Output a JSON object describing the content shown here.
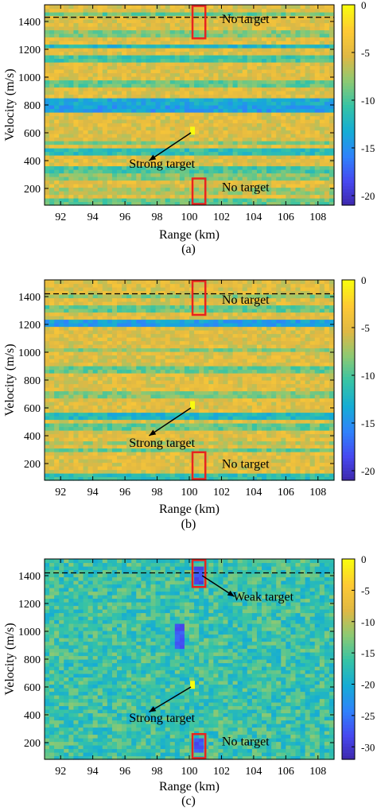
{
  "colors": {
    "marker_box": "#e8231f",
    "dashed_line": "#000000",
    "arrow": "#000000",
    "colormap": [
      "#3d26a8",
      "#4748f0",
      "#2f82fb",
      "#15acd5",
      "#35c3a6",
      "#8cc973",
      "#dfb844",
      "#fec934",
      "#f9fb0e"
    ]
  },
  "chart_data": [
    {
      "type": "heatmap",
      "caption": "(a)",
      "xlabel": "Range (km)",
      "ylabel": "Velocity (m/s)",
      "xlim": [
        91,
        109
      ],
      "ylim": [
        80,
        1520
      ],
      "xticks": [
        92,
        94,
        96,
        98,
        100,
        102,
        104,
        106,
        108
      ],
      "yticks": [
        200,
        400,
        600,
        800,
        1000,
        1200,
        1400
      ],
      "colorbar": {
        "ticks": [
          0,
          -5,
          -10,
          -15,
          -20
        ],
        "labels": [
          "0",
          "-5",
          "-10",
          "-15",
          "-20"
        ],
        "lim": [
          -21,
          0
        ]
      },
      "background_level": -5,
      "weak_rows": [
        {
          "velocity": 110,
          "level": -9
        },
        {
          "velocity": 180,
          "level": -7
        },
        {
          "velocity": 290,
          "level": -8
        },
        {
          "velocity": 340,
          "level": -10
        },
        {
          "velocity": 470,
          "level": -11
        },
        {
          "velocity": 530,
          "level": -8
        },
        {
          "velocity": 780,
          "level": -14
        },
        {
          "velocity": 820,
          "level": -13
        },
        {
          "velocity": 960,
          "level": -9
        },
        {
          "velocity": 1140,
          "level": -10
        },
        {
          "velocity": 1230,
          "level": -12
        },
        {
          "velocity": 1320,
          "level": -8
        },
        {
          "velocity": 1450,
          "level": -9
        }
      ],
      "strong_target": {
        "range": 100.2,
        "velocity": 615
      },
      "dashed_line_velocity": 1430,
      "boxes": [
        {
          "x0": 100.2,
          "x1": 101.0,
          "y0": 1270,
          "y1": 1520
        },
        {
          "x0": 100.2,
          "x1": 101.0,
          "y0": 80,
          "y1": 280
        }
      ],
      "annotations": [
        {
          "text": "Strong target",
          "text_pos": [
            98.3,
            350
          ],
          "arrow_from": [
            97.5,
            400
          ],
          "arrow_to": [
            100.1,
            600
          ]
        },
        {
          "text": "No target",
          "text_pos": [
            103.5,
            1390
          ]
        },
        {
          "text": "No target",
          "text_pos": [
            103.5,
            180
          ]
        }
      ]
    },
    {
      "type": "heatmap",
      "caption": "(b)",
      "xlabel": "Range (km)",
      "ylabel": "Velocity (m/s)",
      "xlim": [
        91,
        109
      ],
      "ylim": [
        80,
        1520
      ],
      "xticks": [
        92,
        94,
        96,
        98,
        100,
        102,
        104,
        106,
        108
      ],
      "yticks": [
        200,
        400,
        600,
        800,
        1000,
        1200,
        1400
      ],
      "colorbar": {
        "ticks": [
          0,
          -5,
          -10,
          -15,
          -20
        ],
        "labels": [
          "0",
          "-5",
          "-10",
          "-15",
          "-20"
        ],
        "lim": [
          -21,
          0
        ]
      },
      "background_level": -5,
      "weak_rows": [
        {
          "velocity": 110,
          "level": -11
        },
        {
          "velocity": 300,
          "level": -9
        },
        {
          "velocity": 350,
          "level": -7
        },
        {
          "velocity": 460,
          "level": -9
        },
        {
          "velocity": 540,
          "level": -12
        },
        {
          "velocity": 700,
          "level": -8
        },
        {
          "velocity": 880,
          "level": -9
        },
        {
          "velocity": 1020,
          "level": -8
        },
        {
          "velocity": 1210,
          "level": -14
        },
        {
          "velocity": 1320,
          "level": -9
        },
        {
          "velocity": 1400,
          "level": -8
        }
      ],
      "strong_target": {
        "range": 100.2,
        "velocity": 620
      },
      "dashed_line_velocity": 1420,
      "boxes": [
        {
          "x0": 100.2,
          "x1": 101.0,
          "y0": 1260,
          "y1": 1520
        },
        {
          "x0": 100.2,
          "x1": 101.0,
          "y0": 80,
          "y1": 290
        }
      ],
      "annotations": [
        {
          "text": "Strong target",
          "text_pos": [
            98.3,
            320
          ],
          "arrow_from": [
            97.5,
            400
          ],
          "arrow_to": [
            100.1,
            600
          ]
        },
        {
          "text": "No target",
          "text_pos": [
            103.5,
            1350
          ]
        },
        {
          "text": "No target",
          "text_pos": [
            103.5,
            170
          ]
        }
      ]
    },
    {
      "type": "heatmap",
      "caption": "(c)",
      "xlabel": "Range (km)",
      "ylabel": "Velocity (m/s)",
      "xlim": [
        91,
        109
      ],
      "ylim": [
        80,
        1520
      ],
      "xticks": [
        92,
        94,
        96,
        98,
        100,
        102,
        104,
        106,
        108
      ],
      "yticks": [
        200,
        400,
        600,
        800,
        1000,
        1200,
        1400
      ],
      "colorbar": {
        "ticks": [
          0,
          -5,
          -10,
          -15,
          -20,
          -25,
          -30
        ],
        "labels": [
          "0",
          "-5",
          "-10",
          "-15",
          "-20",
          "-25",
          "-30"
        ],
        "lim": [
          -32,
          0
        ]
      },
      "background_level": -16,
      "weak_rows": [],
      "dark_patches": [
        {
          "x0": 99.0,
          "x1": 99.8,
          "y0": 870,
          "y1": 1060,
          "level": -27
        },
        {
          "x0": 100.3,
          "x1": 100.9,
          "y0": 1330,
          "y1": 1480,
          "level": -28
        },
        {
          "x0": 100.3,
          "x1": 100.9,
          "y0": 120,
          "y1": 240,
          "level": -27
        }
      ],
      "strong_target": {
        "range": 100.2,
        "velocity": 615
      },
      "dashed_line_velocity": 1420,
      "boxes": [
        {
          "x0": 100.2,
          "x1": 101.0,
          "y0": 1310,
          "y1": 1520
        },
        {
          "x0": 100.2,
          "x1": 101.0,
          "y0": 80,
          "y1": 270
        }
      ],
      "annotations": [
        {
          "text": "Strong target",
          "text_pos": [
            98.3,
            350
          ],
          "arrow_from": [
            97.5,
            420
          ],
          "arrow_to": [
            100.1,
            600
          ]
        },
        {
          "text": "Weak target",
          "text_pos": [
            104.6,
            1220
          ],
          "arrow_from": [
            102.8,
            1250
          ],
          "arrow_to": [
            100.8,
            1400
          ]
        },
        {
          "text": "No target",
          "text_pos": [
            103.5,
            180
          ]
        }
      ]
    }
  ]
}
